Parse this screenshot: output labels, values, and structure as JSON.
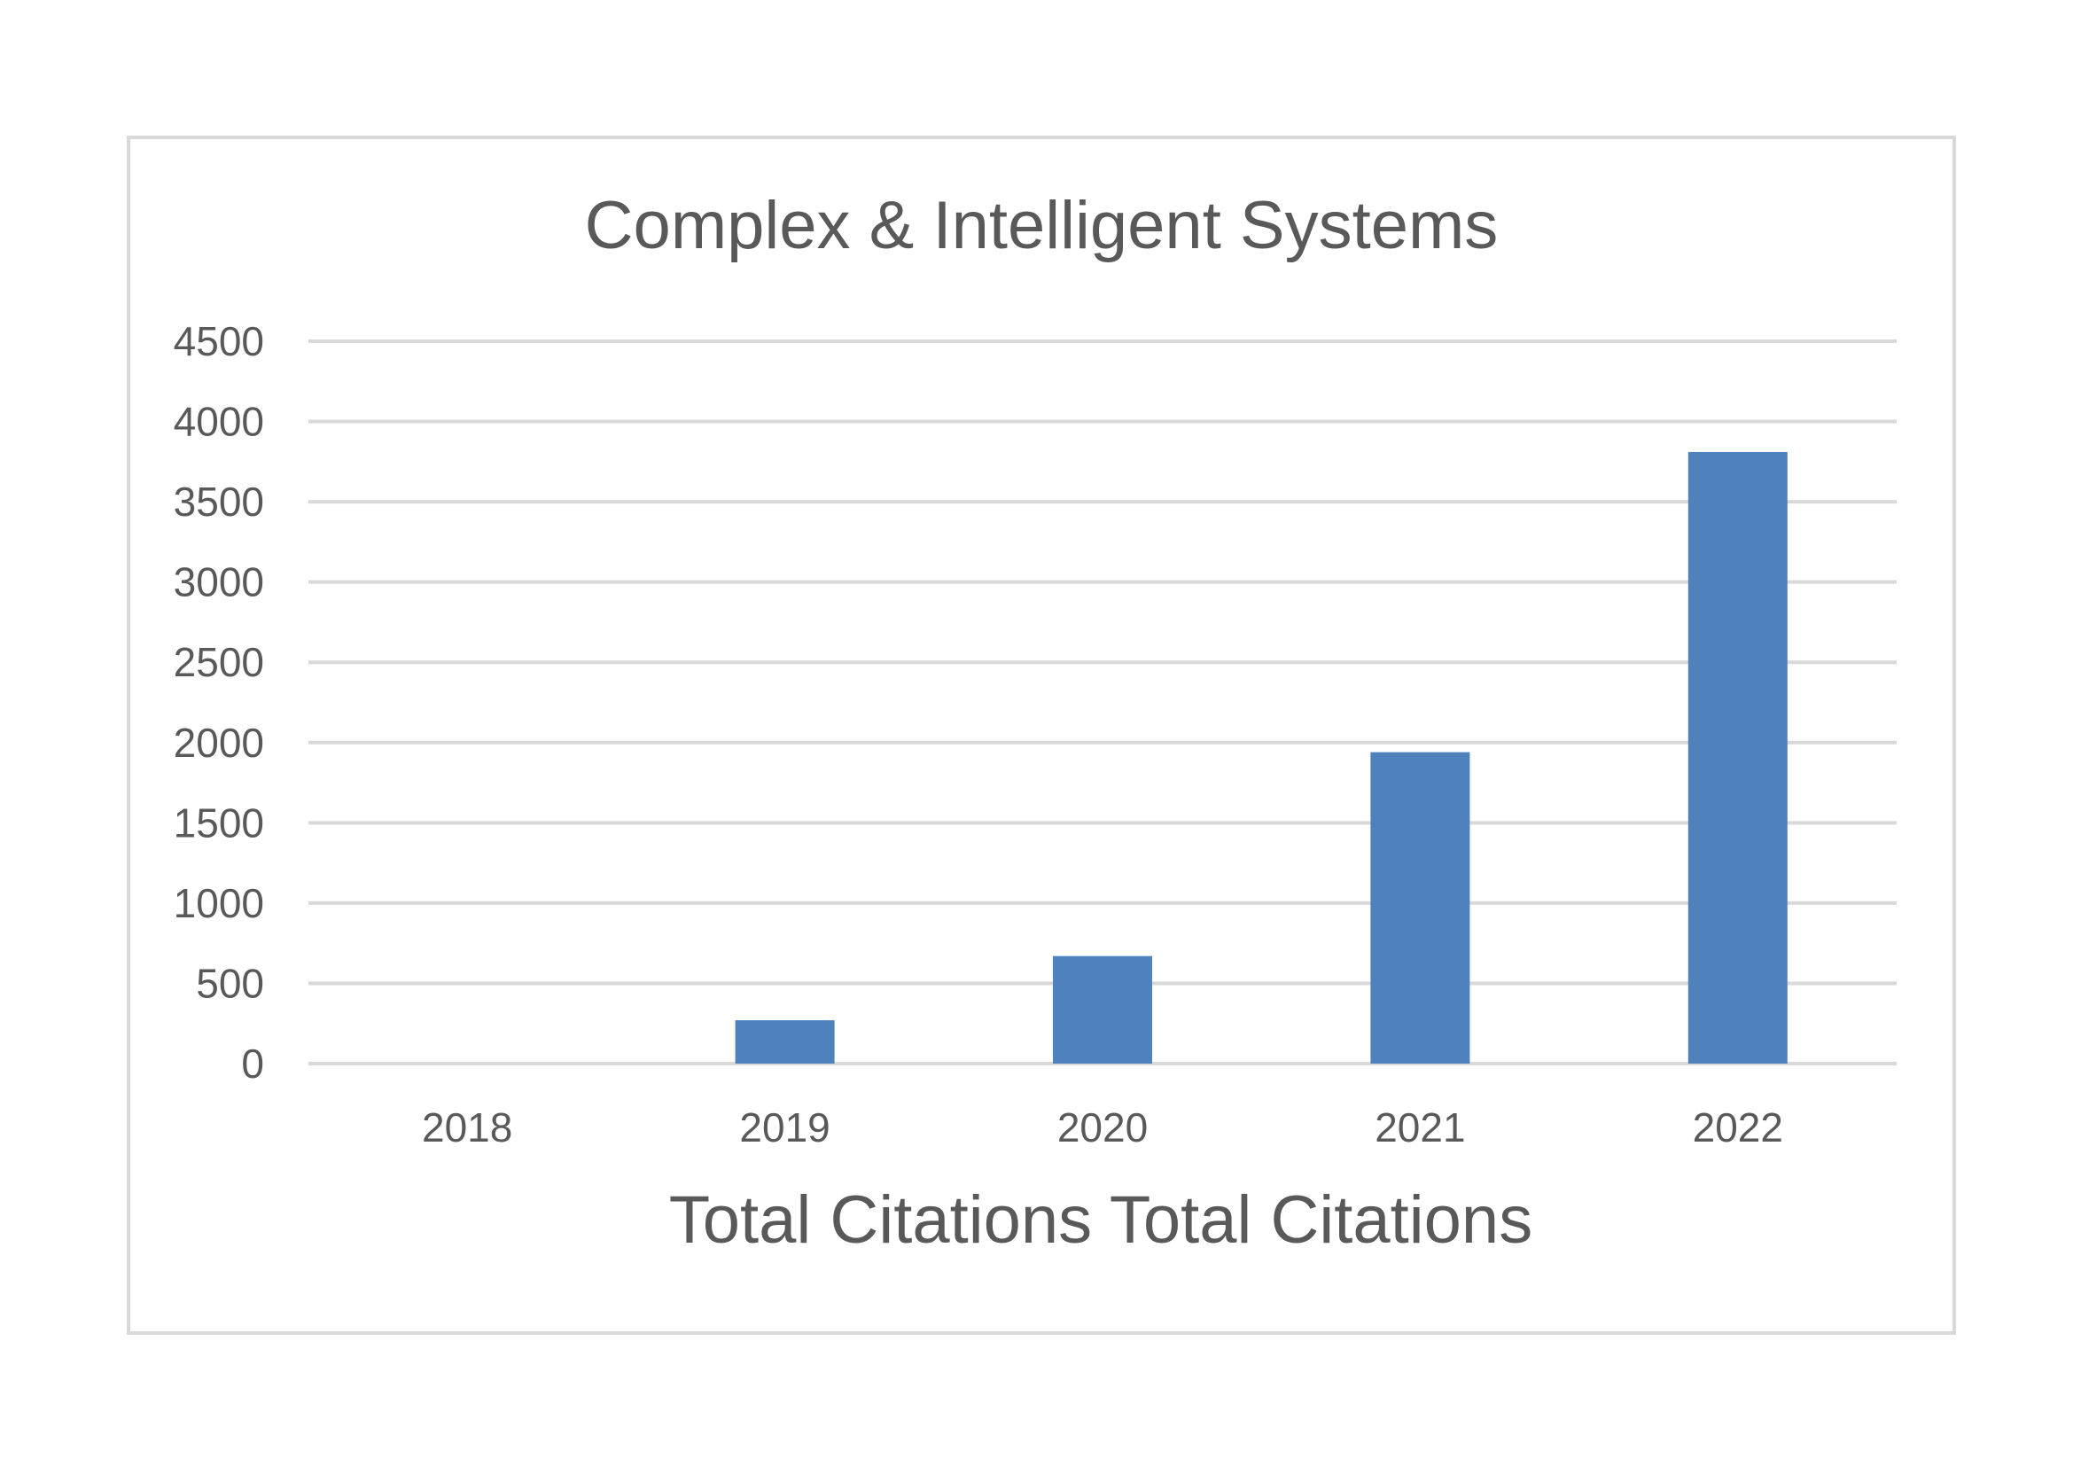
{
  "chart_data": {
    "type": "bar",
    "title": "Complex & Intelligent Systems",
    "xlabel": "Total Citations Total Citations",
    "ylabel": "",
    "categories": [
      "2018",
      "2019",
      "2020",
      "2021",
      "2022"
    ],
    "series": [
      {
        "values": [
          0,
          270,
          670,
          1940,
          3810
        ],
        "color": "#4f81bd"
      }
    ],
    "ylim": [
      0,
      4500
    ],
    "yticks": [
      0,
      500,
      1000,
      1500,
      2000,
      2500,
      3000,
      3500,
      4000,
      4500
    ],
    "ytick_labels": [
      "0",
      "500",
      "1000",
      "1500",
      "2000",
      "2500",
      "3000",
      "3500",
      "4000",
      "4500"
    ],
    "grid": true,
    "legend": "none",
    "colors": {
      "gridline": "#d9d9d9",
      "text": "#595959",
      "border": "#d9d9d9"
    }
  }
}
